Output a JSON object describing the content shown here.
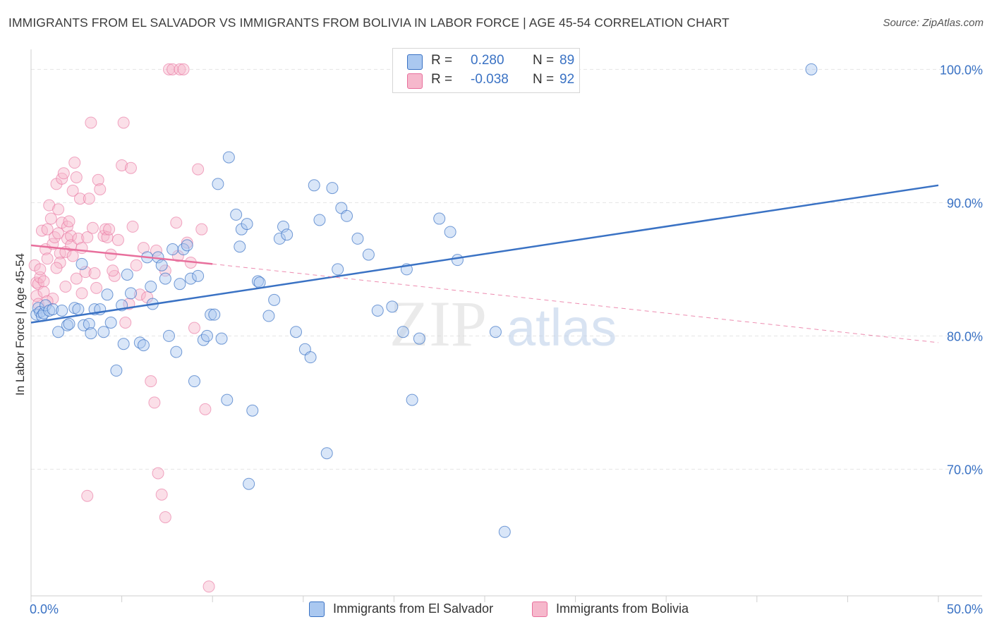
{
  "title": "IMMIGRANTS FROM EL SALVADOR VS IMMIGRANTS FROM BOLIVIA IN LABOR FORCE | AGE 45-54 CORRELATION CHART",
  "source": "Source: ZipAtlas.com",
  "watermark": {
    "zip": "ZIP",
    "atlas": "atlas"
  },
  "colors": {
    "blue": "#3a72c4",
    "blue_fill": "#aac8f0",
    "pink": "#e86f9c",
    "pink_fill": "#f6b8cc",
    "grid": "#e4e4e4"
  },
  "legend": {
    "rows": [
      {
        "r_label": "R =",
        "r_value": "0.280",
        "n_label": "N =",
        "n_value": "89"
      },
      {
        "r_label": "R =",
        "r_value": "-0.038",
        "n_label": "N =",
        "n_value": "92"
      }
    ]
  },
  "bottom_legend": [
    "Immigrants from El Salvador",
    "Immigrants from Bolivia"
  ],
  "chart_data": {
    "type": "scatter",
    "title": "IMMIGRANTS FROM EL SALVADOR VS IMMIGRANTS FROM BOLIVIA IN LABOR FORCE | AGE 45-54 CORRELATION CHART",
    "xlabel": "",
    "ylabel": "In Labor Force | Age 45-54",
    "xlim": [
      0,
      50
    ],
    "ylim": [
      60.5,
      101.5
    ],
    "x_tick_labels": [
      {
        "value": 0,
        "label": "0.0%"
      },
      {
        "value": 50,
        "label": "50.0%"
      }
    ],
    "y_tick_labels": [
      {
        "value": 70,
        "label": "70.0%"
      },
      {
        "value": 80,
        "label": "80.0%"
      },
      {
        "value": 90,
        "label": "90.0%"
      },
      {
        "value": 100,
        "label": "100.0%"
      }
    ],
    "grid": true,
    "legend_position": "top-center",
    "series": [
      {
        "name": "Immigrants from El Salvador",
        "r": 0.28,
        "n": 89,
        "trend": {
          "x": [
            0,
            50
          ],
          "y": [
            81.0,
            91.3
          ]
        },
        "points": [
          [
            0.3,
            81.6
          ],
          [
            0.4,
            82.1
          ],
          [
            0.5,
            81.8
          ],
          [
            0.6,
            81.5
          ],
          [
            0.7,
            81.7
          ],
          [
            0.8,
            82.3
          ],
          [
            1.0,
            81.9
          ],
          [
            1.2,
            82.0
          ],
          [
            1.5,
            80.3
          ],
          [
            1.7,
            81.9
          ],
          [
            2.0,
            80.8
          ],
          [
            2.1,
            80.9
          ],
          [
            2.4,
            82.1
          ],
          [
            2.6,
            82.0
          ],
          [
            2.8,
            85.4
          ],
          [
            2.9,
            80.8
          ],
          [
            3.2,
            80.9
          ],
          [
            3.3,
            80.2
          ],
          [
            3.5,
            82.0
          ],
          [
            3.8,
            82.0
          ],
          [
            4.0,
            80.3
          ],
          [
            4.2,
            83.1
          ],
          [
            4.4,
            81.0
          ],
          [
            4.7,
            77.4
          ],
          [
            5.0,
            82.3
          ],
          [
            5.1,
            79.4
          ],
          [
            5.3,
            84.6
          ],
          [
            5.5,
            83.2
          ],
          [
            6.0,
            79.5
          ],
          [
            6.2,
            79.3
          ],
          [
            6.4,
            85.9
          ],
          [
            6.6,
            83.7
          ],
          [
            6.7,
            82.4
          ],
          [
            7.0,
            85.9
          ],
          [
            7.2,
            85.3
          ],
          [
            7.4,
            84.3
          ],
          [
            7.6,
            80.0
          ],
          [
            7.8,
            86.5
          ],
          [
            8.0,
            78.8
          ],
          [
            8.2,
            83.9
          ],
          [
            8.4,
            86.5
          ],
          [
            8.6,
            86.8
          ],
          [
            8.8,
            84.3
          ],
          [
            9.0,
            76.6
          ],
          [
            9.2,
            84.5
          ],
          [
            9.5,
            79.7
          ],
          [
            9.7,
            80.0
          ],
          [
            9.9,
            81.6
          ],
          [
            10.1,
            81.6
          ],
          [
            10.3,
            91.4
          ],
          [
            10.5,
            79.8
          ],
          [
            10.8,
            75.2
          ],
          [
            10.9,
            93.4
          ],
          [
            11.3,
            89.1
          ],
          [
            11.5,
            86.7
          ],
          [
            11.6,
            88.0
          ],
          [
            11.9,
            88.4
          ],
          [
            12.0,
            68.9
          ],
          [
            12.2,
            74.4
          ],
          [
            12.5,
            84.1
          ],
          [
            12.6,
            84.0
          ],
          [
            13.1,
            81.5
          ],
          [
            13.4,
            82.7
          ],
          [
            13.7,
            87.3
          ],
          [
            13.9,
            88.2
          ],
          [
            14.1,
            87.6
          ],
          [
            14.6,
            80.3
          ],
          [
            15.1,
            79.0
          ],
          [
            15.4,
            78.4
          ],
          [
            15.6,
            91.3
          ],
          [
            15.9,
            88.7
          ],
          [
            16.3,
            71.2
          ],
          [
            16.6,
            91.1
          ],
          [
            16.9,
            85.0
          ],
          [
            17.1,
            89.6
          ],
          [
            17.4,
            89.0
          ],
          [
            18.0,
            87.3
          ],
          [
            18.6,
            86.1
          ],
          [
            19.1,
            81.9
          ],
          [
            19.9,
            82.2
          ],
          [
            20.5,
            80.3
          ],
          [
            20.7,
            85.0
          ],
          [
            21.0,
            75.2
          ],
          [
            21.4,
            79.8
          ],
          [
            22.5,
            88.8
          ],
          [
            23.1,
            87.8
          ],
          [
            23.5,
            85.7
          ],
          [
            25.6,
            80.3
          ],
          [
            26.1,
            65.3
          ],
          [
            43.0,
            100.0
          ]
        ]
      },
      {
        "name": "Immigrants from Bolivia",
        "r": -0.038,
        "n": 92,
        "trend": {
          "x": [
            0,
            10
          ],
          "y": [
            86.8,
            85.4
          ]
        },
        "trend_extended": {
          "x": [
            10,
            50
          ],
          "y": [
            85.4,
            79.5
          ]
        },
        "points": [
          [
            0.2,
            85.3
          ],
          [
            0.3,
            84.0
          ],
          [
            0.3,
            83.0
          ],
          [
            0.4,
            82.4
          ],
          [
            0.4,
            83.9
          ],
          [
            0.5,
            84.4
          ],
          [
            0.5,
            85.0
          ],
          [
            0.6,
            87.9
          ],
          [
            0.7,
            84.1
          ],
          [
            0.8,
            86.5
          ],
          [
            0.9,
            85.8
          ],
          [
            0.9,
            88.0
          ],
          [
            1.0,
            89.8
          ],
          [
            1.1,
            88.8
          ],
          [
            1.2,
            86.9
          ],
          [
            1.3,
            87.4
          ],
          [
            1.4,
            91.4
          ],
          [
            1.5,
            89.5
          ],
          [
            1.5,
            87.7
          ],
          [
            1.6,
            86.2
          ],
          [
            1.7,
            88.5
          ],
          [
            1.7,
            91.8
          ],
          [
            1.8,
            92.2
          ],
          [
            1.9,
            86.3
          ],
          [
            2.0,
            88.2
          ],
          [
            2.0,
            87.3
          ],
          [
            2.1,
            88.6
          ],
          [
            2.2,
            87.5
          ],
          [
            2.2,
            86.8
          ],
          [
            2.3,
            90.9
          ],
          [
            2.4,
            93.0
          ],
          [
            2.5,
            91.9
          ],
          [
            2.6,
            87.3
          ],
          [
            2.7,
            90.3
          ],
          [
            2.8,
            86.6
          ],
          [
            3.0,
            84.8
          ],
          [
            3.1,
            87.4
          ],
          [
            3.2,
            90.3
          ],
          [
            3.3,
            96.0
          ],
          [
            3.4,
            88.1
          ],
          [
            3.5,
            84.7
          ],
          [
            3.7,
            91.7
          ],
          [
            3.8,
            91.0
          ],
          [
            4.0,
            87.5
          ],
          [
            4.1,
            88.0
          ],
          [
            4.2,
            87.4
          ],
          [
            4.3,
            88.0
          ],
          [
            4.4,
            86.1
          ],
          [
            4.6,
            84.5
          ],
          [
            4.8,
            87.2
          ],
          [
            5.0,
            92.8
          ],
          [
            5.1,
            96.0
          ],
          [
            5.4,
            82.4
          ],
          [
            5.5,
            92.6
          ],
          [
            5.6,
            88.2
          ],
          [
            5.8,
            85.3
          ],
          [
            6.0,
            83.1
          ],
          [
            6.2,
            86.6
          ],
          [
            6.4,
            82.9
          ],
          [
            6.6,
            76.6
          ],
          [
            6.8,
            75.0
          ],
          [
            7.0,
            69.7
          ],
          [
            7.2,
            68.1
          ],
          [
            7.4,
            66.4
          ],
          [
            7.6,
            100.0
          ],
          [
            7.8,
            100.0
          ],
          [
            8.0,
            88.5
          ],
          [
            8.2,
            100.0
          ],
          [
            8.4,
            100.0
          ],
          [
            8.6,
            87.0
          ],
          [
            8.8,
            85.5
          ],
          [
            9.0,
            80.6
          ],
          [
            9.2,
            92.5
          ],
          [
            9.4,
            88.0
          ],
          [
            9.6,
            74.5
          ],
          [
            9.8,
            61.2
          ],
          [
            3.1,
            68.0
          ],
          [
            2.5,
            84.3
          ],
          [
            1.9,
            83.7
          ],
          [
            1.2,
            82.8
          ],
          [
            0.7,
            83.3
          ],
          [
            0.9,
            82.6
          ],
          [
            1.6,
            85.5
          ],
          [
            2.8,
            83.2
          ],
          [
            3.6,
            83.6
          ],
          [
            4.5,
            84.9
          ],
          [
            5.2,
            81.0
          ],
          [
            6.9,
            86.4
          ],
          [
            7.4,
            84.9
          ],
          [
            8.1,
            86.0
          ],
          [
            1.4,
            85.1
          ],
          [
            2.3,
            86.0
          ]
        ]
      }
    ]
  }
}
